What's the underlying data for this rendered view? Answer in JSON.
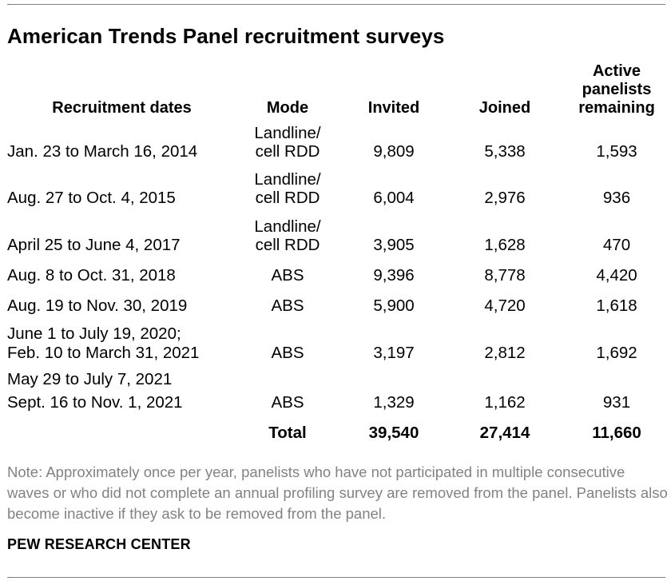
{
  "title": "American Trends Panel recruitment surveys",
  "columns": {
    "dates": "Recruitment dates",
    "mode": "Mode",
    "invited": "Invited",
    "joined": "Joined",
    "active": [
      "Active",
      "panelists",
      "remaining"
    ]
  },
  "rows": [
    {
      "dates": [
        "Jan. 23 to March 16, 2014"
      ],
      "mode": [
        "Landline/",
        "cell RDD"
      ],
      "invited": "9,809",
      "joined": "5,338",
      "active": "1,593"
    },
    {
      "dates": [
        "Aug. 27 to Oct. 4, 2015"
      ],
      "mode": [
        "Landline/",
        "cell RDD"
      ],
      "invited": "6,004",
      "joined": "2,976",
      "active": "936"
    },
    {
      "dates": [
        "April 25 to June 4, 2017"
      ],
      "mode": [
        "Landline/",
        "cell RDD"
      ],
      "invited": "3,905",
      "joined": "1,628",
      "active": "470"
    },
    {
      "dates": [
        "Aug. 8 to Oct. 31, 2018"
      ],
      "mode": [
        "ABS"
      ],
      "invited": "9,396",
      "joined": "8,778",
      "active": "4,420"
    },
    {
      "dates": [
        "Aug. 19 to Nov. 30, 2019"
      ],
      "mode": [
        "ABS"
      ],
      "invited": "5,900",
      "joined": "4,720",
      "active": "1,618"
    },
    {
      "dates": [
        "June 1 to July 19, 2020;",
        "Feb. 10 to March 31, 2021"
      ],
      "mode": [
        "ABS"
      ],
      "invited": "3,197",
      "joined": "2,812",
      "active": "1,692"
    },
    {
      "dates": [
        "May 29 to July 7, 2021",
        "Sept. 16 to Nov. 1, 2021"
      ],
      "mode": [
        "ABS"
      ],
      "invited": "1,329",
      "joined": "1,162",
      "active": "931"
    }
  ],
  "total": {
    "label": "Total",
    "invited": "39,540",
    "joined": "27,414",
    "active": "11,660"
  },
  "note": "Note: Approximately once per year, panelists who have not participated in multiple consecutive waves or who did not complete an annual profiling survey are removed from the panel. Panelists also become inactive if they ask to be removed from the panel.",
  "source": "PEW RESEARCH CENTER"
}
